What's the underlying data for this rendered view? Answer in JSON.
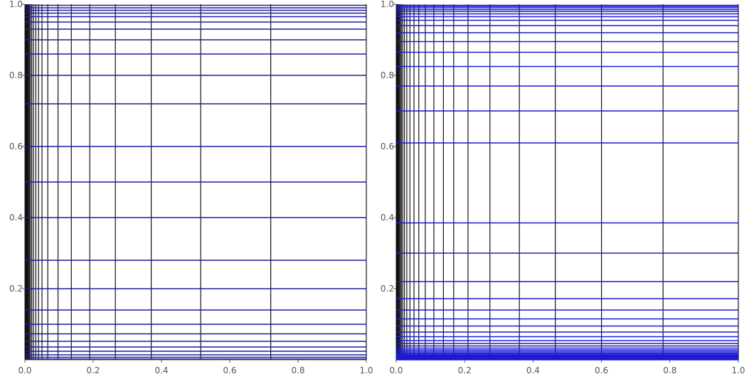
{
  "colors": {
    "vertical_lines": "#111111",
    "horizontal_lines": "#1a1aa6",
    "horizontal_lines_dense": "#1a1ad6",
    "axis": "#555555",
    "background": "#ffffff"
  },
  "chart_data": [
    {
      "type": "line",
      "title": "",
      "xlabel": "",
      "ylabel": "",
      "xlim": [
        0,
        1
      ],
      "ylim": [
        0,
        1
      ],
      "grid": false,
      "x_ticks": [
        "0.0",
        "0.2",
        "0.4",
        "0.6",
        "0.8",
        "1.0"
      ],
      "y_ticks": [
        "0.2",
        "0.4",
        "0.6",
        "0.8",
        "1.0"
      ],
      "series": [
        {
          "orientation": "vertical",
          "values": [
            0.0005,
            0.001,
            0.002,
            0.003,
            0.004,
            0.005,
            0.007,
            0.009,
            0.011,
            0.013,
            0.016,
            0.02,
            0.025,
            0.032,
            0.04,
            0.05,
            0.067,
            0.097,
            0.136,
            0.19,
            0.265,
            0.37,
            0.515,
            0.72,
            1.0
          ]
        },
        {
          "orientation": "horizontal",
          "values": [
            0.002,
            0.007,
            0.014,
            0.024,
            0.036,
            0.052,
            0.073,
            0.1,
            0.14,
            0.2,
            0.28,
            0.4,
            0.5,
            0.6,
            0.72,
            0.8,
            0.86,
            0.9,
            0.93,
            0.95,
            0.965,
            0.975,
            0.983,
            0.99,
            0.997
          ]
        }
      ]
    },
    {
      "type": "line",
      "title": "",
      "xlabel": "",
      "ylabel": "",
      "xlim": [
        0,
        1
      ],
      "ylim": [
        0,
        1
      ],
      "grid": false,
      "x_ticks": [
        "0.0",
        "0.2",
        "0.4",
        "0.6",
        "0.8",
        "1.0"
      ],
      "y_ticks": [
        "0.2",
        "0.4",
        "0.6",
        "0.8",
        "1.0"
      ],
      "series": [
        {
          "orientation": "vertical",
          "values": [
            0.0005,
            0.001,
            0.002,
            0.003,
            0.004,
            0.005,
            0.007,
            0.009,
            0.012,
            0.015,
            0.019,
            0.024,
            0.031,
            0.04,
            0.052,
            0.066,
            0.085,
            0.11,
            0.138,
            0.168,
            0.21,
            0.274,
            0.36,
            0.465,
            0.6,
            0.78,
            1.0
          ]
        },
        {
          "orientation": "horizontal",
          "values": [
            0.0,
            0.002,
            0.004,
            0.006,
            0.008,
            0.01,
            0.012,
            0.014,
            0.017,
            0.02,
            0.024,
            0.028,
            0.033,
            0.039,
            0.046,
            0.054,
            0.065,
            0.078,
            0.095,
            0.115,
            0.14,
            0.172,
            0.22,
            0.3,
            0.385,
            0.61,
            0.7,
            0.77,
            0.825,
            0.865,
            0.895,
            0.92,
            0.94,
            0.955,
            0.965,
            0.973,
            0.98,
            0.985,
            0.99,
            0.994,
            0.997
          ]
        }
      ]
    }
  ]
}
